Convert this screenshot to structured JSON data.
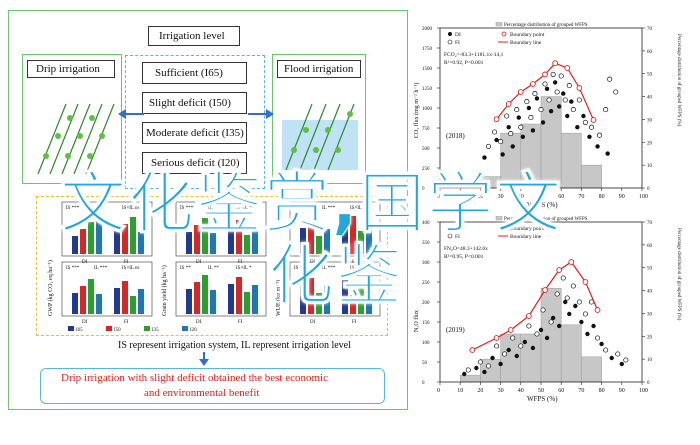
{
  "left_diagram": {
    "irrigation_level_title": "Irrigation level",
    "drip_label": "Drip irrigation",
    "flood_label": "Flood irrigation",
    "levels": [
      "Sufficient (I65)",
      "Slight deficit (I50)",
      "Moderate deficit (I35)",
      "Serious deficit (I20)"
    ],
    "panels": [
      {
        "ylabel": "GWP (kg CO₂ eq ha⁻¹)",
        "top_tags": [
          "IS ***",
          "IL *",
          "IS×IL ns"
        ],
        "mid_tags": [
          "IS ***",
          "IL ***",
          "IS×IL ns"
        ],
        "groups": [
          "DI",
          "FI"
        ]
      },
      {
        "ylabel": "Grain yield (kg ha⁻¹)",
        "top_tags": [
          "IS ***",
          "IL ***",
          "IS×IL **"
        ],
        "mid_tags": [
          "IS **",
          "IL **",
          "IS×IL *"
        ],
        "groups": [
          "DI",
          "FI"
        ]
      },
      {
        "ylabel": "WUE (kg m⁻³)",
        "top_tags": [
          "IS ***",
          "IL ***",
          "IS×IL ***"
        ],
        "mid_tags": [
          "IS ***",
          "IL ***",
          "IS×IL ***"
        ],
        "groups": [
          "DI",
          "FI"
        ]
      }
    ],
    "legend": [
      "I65",
      "I50",
      "I35",
      "I20"
    ],
    "note": "IS represent irrigation system, IL represent irrigation level",
    "conclusion_line1": "Drip irrigation with slight deficit obtained the best economic",
    "conclusion_line2": "and environmental benefit",
    "colors": {
      "i65": "#1f3a93",
      "i50": "#d62728",
      "i35": "#2ca02c",
      "i20": "#1f77b4"
    }
  },
  "overlay": {
    "line1": "文化鉴赏,国学文",
    "line2": "化鉴",
    "color": "#1fa7e0"
  },
  "chart_data": [
    {
      "type": "scatter",
      "title": "",
      "year": "(2018)",
      "xlabel": "WFPS (%)",
      "ylabel": "CO₂ flux (mg m⁻² h⁻¹)",
      "ylabel_right": "Percentage distribution of grouped WFPS (%)",
      "legend": [
        "DI",
        "FI",
        "Boundary point",
        "Boundary line",
        "Percentage distribution of grouped WFPS"
      ],
      "equation": "FCO₂=-83.3+1181.1x-14,1",
      "r2": "R²=0.92, P<0.001",
      "xlim": [
        0,
        100
      ],
      "ylim": [
        0,
        2000
      ],
      "y2lim": [
        0,
        70
      ],
      "x_ticks": [
        "0",
        "10",
        "20",
        "30",
        "40",
        "50",
        "60",
        "70",
        "80",
        "90",
        "100"
      ],
      "y_ticks": [
        "0",
        "250",
        "500",
        "750",
        "1000",
        "1250",
        "1500",
        "1750",
        "2000"
      ],
      "y2_ticks": [
        "0",
        "10",
        "20",
        "30",
        "40",
        "50",
        "60",
        "70"
      ],
      "hist": [
        {
          "x": [
            20,
            30
          ],
          "pct": 5
        },
        {
          "x": [
            30,
            40
          ],
          "pct": 24
        },
        {
          "x": [
            40,
            50
          ],
          "pct": 28
        },
        {
          "x": [
            50,
            60
          ],
          "pct": 40
        },
        {
          "x": [
            60,
            70
          ],
          "pct": 24
        },
        {
          "x": [
            70,
            80
          ],
          "pct": 10
        }
      ],
      "boundary_points": [
        [
          28,
          860
        ],
        [
          34,
          1050
        ],
        [
          40,
          1200
        ],
        [
          46,
          1300
        ],
        [
          52,
          1420
        ],
        [
          57,
          1560
        ],
        [
          63,
          1500
        ],
        [
          69,
          1250
        ],
        [
          76,
          850
        ]
      ],
      "series": [
        {
          "name": "DI",
          "points": [
            [
              22,
              380
            ],
            [
              28,
              600
            ],
            [
              31,
              420
            ],
            [
              34,
              760
            ],
            [
              36,
              520
            ],
            [
              39,
              880
            ],
            [
              41,
              640
            ],
            [
              44,
              1000
            ],
            [
              46,
              720
            ],
            [
              48,
              1120
            ],
            [
              51,
              820
            ],
            [
              53,
              1240
            ],
            [
              55,
              960
            ],
            [
              57,
              1320
            ],
            [
              59,
              1020
            ],
            [
              61,
              1180
            ],
            [
              63,
              900
            ],
            [
              65,
              1080
            ],
            [
              68,
              760
            ],
            [
              71,
              900
            ],
            [
              74,
              640
            ],
            [
              78,
              520
            ],
            [
              83,
              430
            ]
          ]
        },
        {
          "name": "FI",
          "points": [
            [
              24,
              520
            ],
            [
              27,
              700
            ],
            [
              30,
              580
            ],
            [
              33,
              900
            ],
            [
              35,
              680
            ],
            [
              38,
              980
            ],
            [
              40,
              760
            ],
            [
              43,
              1080
            ],
            [
              45,
              880
            ],
            [
              47,
              1180
            ],
            [
              50,
              980
            ],
            [
              52,
              1300
            ],
            [
              54,
              1100
            ],
            [
              56,
              1420
            ],
            [
              58,
              1200
            ],
            [
              60,
              1400
            ],
            [
              62,
              1100
            ],
            [
              64,
              1280
            ],
            [
              66,
              980
            ],
            [
              69,
              1100
            ],
            [
              72,
              820
            ],
            [
              75,
              760
            ],
            [
              79,
              660
            ],
            [
              82,
              980
            ],
            [
              84,
              1360
            ],
            [
              87,
              1200
            ]
          ]
        }
      ]
    },
    {
      "type": "scatter",
      "title": "",
      "year": "(2019)",
      "xlabel": "WFPS (%)",
      "ylabel": "N₂O flux",
      "ylabel_right": "Percentage distribution of grouped WFPS (%)",
      "legend": [
        "DI",
        "FI",
        "Boundary point",
        "Boundary line",
        "Percentage distribution of grouped WFPS"
      ],
      "equation": "FN₂O=48.3+142.6x",
      "r2": "R²=0.95, P<0.001",
      "xlim": [
        0,
        100
      ],
      "ylim": [
        0,
        400
      ],
      "y2lim": [
        0,
        70
      ],
      "x_ticks": [
        "0",
        "10",
        "20",
        "30",
        "40",
        "50",
        "60",
        "70",
        "80",
        "90",
        "100"
      ],
      "y_ticks": [
        "0",
        "50",
        "100",
        "150",
        "200",
        "250",
        "300",
        "350",
        "400"
      ],
      "y2_ticks": [
        "0",
        "10",
        "20",
        "30",
        "40",
        "50",
        "60",
        "70"
      ],
      "hist": [
        {
          "x": [
            10,
            20
          ],
          "pct": 3
        },
        {
          "x": [
            20,
            30
          ],
          "pct": 10
        },
        {
          "x": [
            30,
            40
          ],
          "pct": 21
        },
        {
          "x": [
            40,
            50
          ],
          "pct": 21
        },
        {
          "x": [
            50,
            60
          ],
          "pct": 41
        },
        {
          "x": [
            60,
            70
          ],
          "pct": 25
        },
        {
          "x": [
            70,
            80
          ],
          "pct": 11
        }
      ],
      "boundary_points": [
        [
          16,
          80
        ],
        [
          28,
          110
        ],
        [
          35,
          130
        ],
        [
          44,
          165
        ],
        [
          52,
          230
        ],
        [
          59,
          280
        ],
        [
          65,
          300
        ],
        [
          72,
          250
        ],
        [
          78,
          180
        ]
      ],
      "series": [
        {
          "name": "DI",
          "points": [
            [
              12,
              20
            ],
            [
              18,
              35
            ],
            [
              22,
              25
            ],
            [
              26,
              60
            ],
            [
              30,
              45
            ],
            [
              34,
              80
            ],
            [
              38,
              65
            ],
            [
              42,
              100
            ],
            [
              46,
              85
            ],
            [
              50,
              130
            ],
            [
              53,
              110
            ],
            [
              56,
              160
            ],
            [
              59,
              140
            ],
            [
              62,
              200
            ],
            [
              64,
              170
            ],
            [
              67,
              190
            ],
            [
              70,
              150
            ],
            [
              73,
              120
            ],
            [
              76,
              140
            ],
            [
              80,
              95
            ],
            [
              85,
              60
            ],
            [
              90,
              45
            ]
          ]
        },
        {
          "name": "FI",
          "points": [
            [
              14,
              30
            ],
            [
              20,
              50
            ],
            [
              24,
              40
            ],
            [
              28,
              90
            ],
            [
              32,
              70
            ],
            [
              36,
              110
            ],
            [
              40,
              90
            ],
            [
              44,
              140
            ],
            [
              48,
              120
            ],
            [
              51,
              180
            ],
            [
              55,
              150
            ],
            [
              58,
              220
            ],
            [
              61,
              260
            ],
            [
              63,
              210
            ],
            [
              66,
              240
            ],
            [
              69,
              200
            ],
            [
              72,
              170
            ],
            [
              75,
              200
            ],
            [
              78,
              110
            ],
            [
              82,
              80
            ],
            [
              88,
              70
            ],
            [
              92,
              55
            ]
          ]
        }
      ]
    }
  ]
}
